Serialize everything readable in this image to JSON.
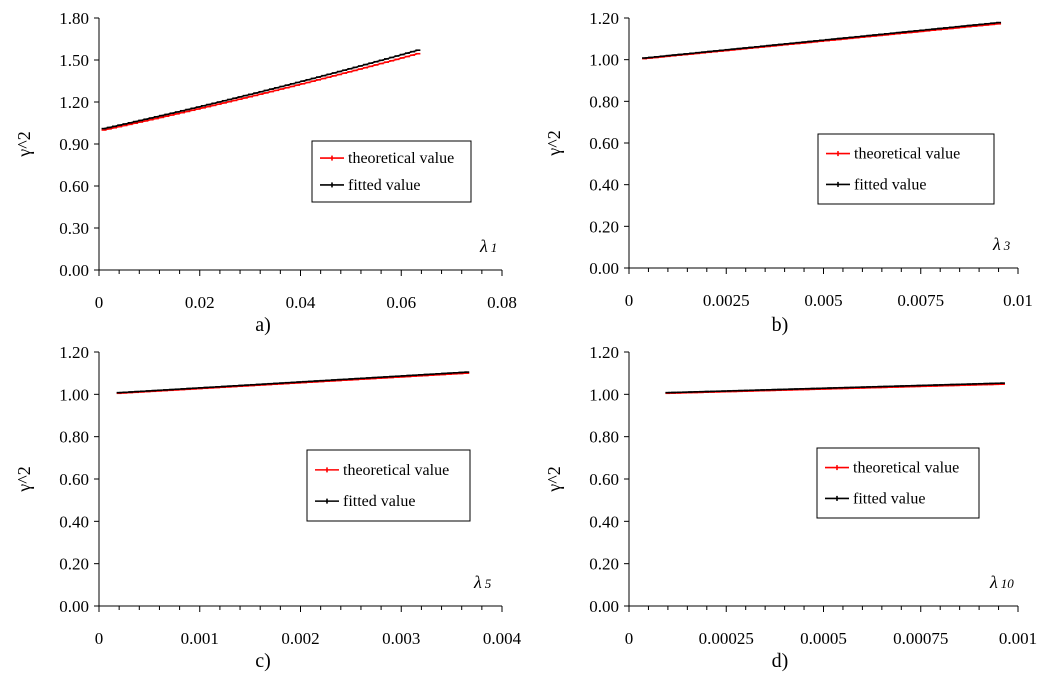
{
  "figure": {
    "colors": {
      "theoretical": "#ff0000",
      "fitted": "#000000",
      "axis": "#000000"
    }
  },
  "chart_data": [
    {
      "type": "line",
      "panel_label": "a)",
      "ylabel": "γ^2",
      "xlabel": "λ",
      "xlabel_sub": "1",
      "xlim": [
        0,
        0.08
      ],
      "ylim": [
        0,
        1.8
      ],
      "xticks": [
        0,
        0.02,
        0.04,
        0.06,
        0.08
      ],
      "xtick_labels": [
        "0",
        "0.02",
        "0.04",
        "0.06",
        "0.08"
      ],
      "yticks": [
        0,
        0.3,
        0.6,
        0.9,
        1.2,
        1.5,
        1.8
      ],
      "ytick_labels": [
        "0.00",
        "0.30",
        "0.60",
        "0.90",
        "1.20",
        "1.50",
        "1.80"
      ],
      "legend": [
        "theoretical value",
        "fitted value"
      ],
      "legend_position": "center-right",
      "series": [
        {
          "name": "theoretical value",
          "x": [
            0.001,
            0.0633
          ],
          "y": [
            1.0,
            1.545
          ]
        },
        {
          "name": "fitted value",
          "x": [
            0.001,
            0.0633
          ],
          "y": [
            1.01,
            1.57
          ]
        }
      ]
    },
    {
      "type": "line",
      "panel_label": "b)",
      "ylabel": "γ^2",
      "xlabel": "λ",
      "xlabel_sub": "3",
      "xlim": [
        0,
        0.01
      ],
      "ylim": [
        0,
        1.2
      ],
      "xticks": [
        0,
        0.0025,
        0.005,
        0.0075,
        0.01
      ],
      "xtick_labels": [
        "0",
        "0.0025",
        "0.005",
        "0.0075",
        "0.01"
      ],
      "yticks": [
        0,
        0.2,
        0.4,
        0.6,
        0.8,
        1.0,
        1.2
      ],
      "ytick_labels": [
        "0.00",
        "0.20",
        "0.40",
        "0.60",
        "0.80",
        "1.00",
        "1.20"
      ],
      "legend": [
        "theoretical value",
        "fitted value"
      ],
      "legend_position": "center-right",
      "series": [
        {
          "name": "theoretical value",
          "x": [
            0.0004,
            0.0095
          ],
          "y": [
            1.005,
            1.172
          ]
        },
        {
          "name": "fitted value",
          "x": [
            0.0004,
            0.0095
          ],
          "y": [
            1.008,
            1.178
          ]
        }
      ]
    },
    {
      "type": "line",
      "panel_label": "c)",
      "ylabel": "γ^2",
      "xlabel": "λ",
      "xlabel_sub": "5",
      "xlim": [
        0,
        0.004
      ],
      "ylim": [
        0,
        1.2
      ],
      "xticks": [
        0,
        0.001,
        0.002,
        0.003,
        0.004
      ],
      "xtick_labels": [
        "0",
        "0.001",
        "0.002",
        "0.003",
        "0.004"
      ],
      "yticks": [
        0,
        0.2,
        0.4,
        0.6,
        0.8,
        1.0,
        1.2
      ],
      "ytick_labels": [
        "0.00",
        "0.20",
        "0.40",
        "0.60",
        "0.80",
        "1.00",
        "1.20"
      ],
      "legend": [
        "theoretical value",
        "fitted value"
      ],
      "legend_position": "center-right",
      "series": [
        {
          "name": "theoretical value",
          "x": [
            0.0002,
            0.00365
          ],
          "y": [
            1.005,
            1.1
          ]
        },
        {
          "name": "fitted value",
          "x": [
            0.0002,
            0.00365
          ],
          "y": [
            1.008,
            1.105
          ]
        }
      ]
    },
    {
      "type": "line",
      "panel_label": "d)",
      "ylabel": "γ^2",
      "xlabel": "λ",
      "xlabel_sub": "10",
      "xlim": [
        0,
        0.001
      ],
      "ylim": [
        0,
        1.2
      ],
      "xticks": [
        0,
        0.00025,
        0.0005,
        0.00075,
        0.001
      ],
      "xtick_labels": [
        "0",
        "0.00025",
        "0.0005",
        "0.00075",
        "0.001"
      ],
      "yticks": [
        0,
        0.2,
        0.4,
        0.6,
        0.8,
        1.0,
        1.2
      ],
      "ytick_labels": [
        "0.00",
        "0.20",
        "0.40",
        "0.60",
        "0.80",
        "1.00",
        "1.20"
      ],
      "legend": [
        "theoretical value",
        "fitted value"
      ],
      "legend_position": "center-right",
      "series": [
        {
          "name": "theoretical value",
          "x": [
            0.0001,
            0.00096
          ],
          "y": [
            1.005,
            1.048
          ]
        },
        {
          "name": "fitted value",
          "x": [
            0.0001,
            0.00096
          ],
          "y": [
            1.008,
            1.053
          ]
        }
      ]
    }
  ]
}
